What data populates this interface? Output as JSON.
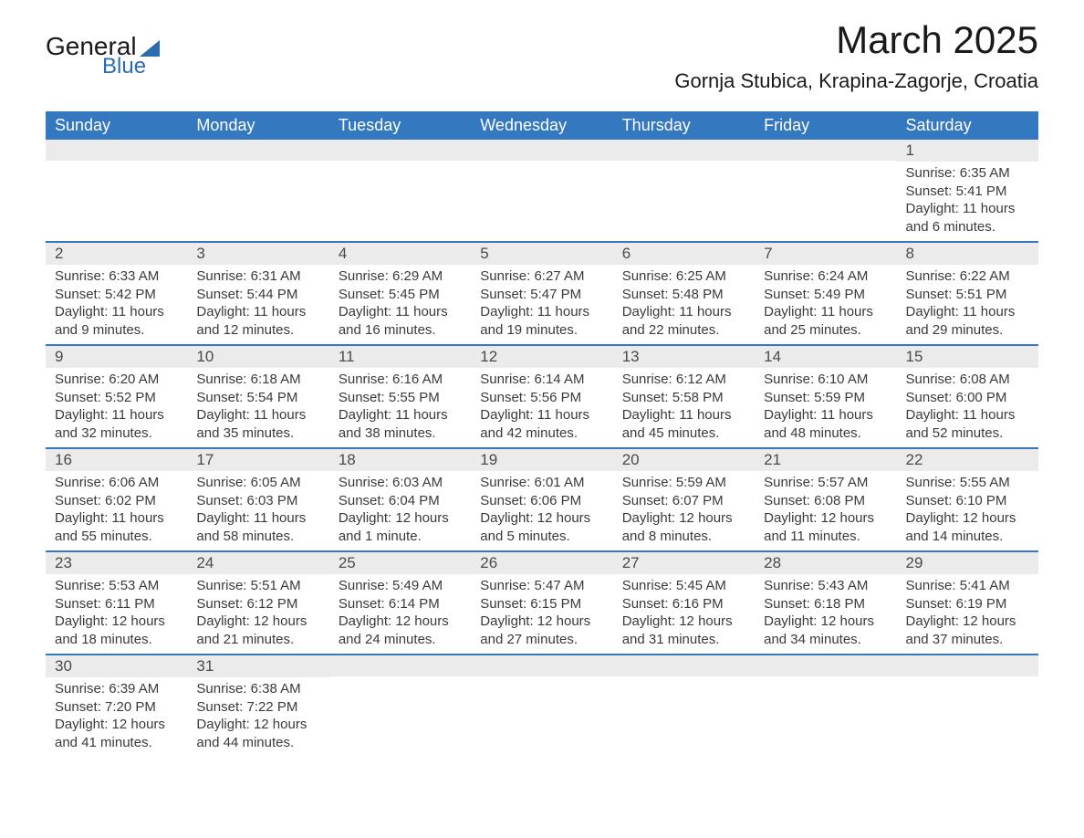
{
  "logo": {
    "general": "General",
    "blue": "Blue"
  },
  "header": {
    "title": "March 2025",
    "location": "Gornja Stubica, Krapina-Zagorje, Croatia"
  },
  "styling": {
    "header_bg": "#3478c0",
    "header_text": "#ffffff",
    "day_header_bg": "#ebebeb",
    "day_text": "#3a3a3a",
    "row_border": "#3478c0",
    "title_fontsize": 42,
    "location_fontsize": 22,
    "dayheader_fontsize": 18,
    "content_fontsize": 15
  },
  "day_names": [
    "Sunday",
    "Monday",
    "Tuesday",
    "Wednesday",
    "Thursday",
    "Friday",
    "Saturday"
  ],
  "weeks": [
    [
      null,
      null,
      null,
      null,
      null,
      null,
      {
        "day": "1",
        "sunrise": "Sunrise: 6:35 AM",
        "sunset": "Sunset: 5:41 PM",
        "daylight1": "Daylight: 11 hours",
        "daylight2": "and 6 minutes."
      }
    ],
    [
      {
        "day": "2",
        "sunrise": "Sunrise: 6:33 AM",
        "sunset": "Sunset: 5:42 PM",
        "daylight1": "Daylight: 11 hours",
        "daylight2": "and 9 minutes."
      },
      {
        "day": "3",
        "sunrise": "Sunrise: 6:31 AM",
        "sunset": "Sunset: 5:44 PM",
        "daylight1": "Daylight: 11 hours",
        "daylight2": "and 12 minutes."
      },
      {
        "day": "4",
        "sunrise": "Sunrise: 6:29 AM",
        "sunset": "Sunset: 5:45 PM",
        "daylight1": "Daylight: 11 hours",
        "daylight2": "and 16 minutes."
      },
      {
        "day": "5",
        "sunrise": "Sunrise: 6:27 AM",
        "sunset": "Sunset: 5:47 PM",
        "daylight1": "Daylight: 11 hours",
        "daylight2": "and 19 minutes."
      },
      {
        "day": "6",
        "sunrise": "Sunrise: 6:25 AM",
        "sunset": "Sunset: 5:48 PM",
        "daylight1": "Daylight: 11 hours",
        "daylight2": "and 22 minutes."
      },
      {
        "day": "7",
        "sunrise": "Sunrise: 6:24 AM",
        "sunset": "Sunset: 5:49 PM",
        "daylight1": "Daylight: 11 hours",
        "daylight2": "and 25 minutes."
      },
      {
        "day": "8",
        "sunrise": "Sunrise: 6:22 AM",
        "sunset": "Sunset: 5:51 PM",
        "daylight1": "Daylight: 11 hours",
        "daylight2": "and 29 minutes."
      }
    ],
    [
      {
        "day": "9",
        "sunrise": "Sunrise: 6:20 AM",
        "sunset": "Sunset: 5:52 PM",
        "daylight1": "Daylight: 11 hours",
        "daylight2": "and 32 minutes."
      },
      {
        "day": "10",
        "sunrise": "Sunrise: 6:18 AM",
        "sunset": "Sunset: 5:54 PM",
        "daylight1": "Daylight: 11 hours",
        "daylight2": "and 35 minutes."
      },
      {
        "day": "11",
        "sunrise": "Sunrise: 6:16 AM",
        "sunset": "Sunset: 5:55 PM",
        "daylight1": "Daylight: 11 hours",
        "daylight2": "and 38 minutes."
      },
      {
        "day": "12",
        "sunrise": "Sunrise: 6:14 AM",
        "sunset": "Sunset: 5:56 PM",
        "daylight1": "Daylight: 11 hours",
        "daylight2": "and 42 minutes."
      },
      {
        "day": "13",
        "sunrise": "Sunrise: 6:12 AM",
        "sunset": "Sunset: 5:58 PM",
        "daylight1": "Daylight: 11 hours",
        "daylight2": "and 45 minutes."
      },
      {
        "day": "14",
        "sunrise": "Sunrise: 6:10 AM",
        "sunset": "Sunset: 5:59 PM",
        "daylight1": "Daylight: 11 hours",
        "daylight2": "and 48 minutes."
      },
      {
        "day": "15",
        "sunrise": "Sunrise: 6:08 AM",
        "sunset": "Sunset: 6:00 PM",
        "daylight1": "Daylight: 11 hours",
        "daylight2": "and 52 minutes."
      }
    ],
    [
      {
        "day": "16",
        "sunrise": "Sunrise: 6:06 AM",
        "sunset": "Sunset: 6:02 PM",
        "daylight1": "Daylight: 11 hours",
        "daylight2": "and 55 minutes."
      },
      {
        "day": "17",
        "sunrise": "Sunrise: 6:05 AM",
        "sunset": "Sunset: 6:03 PM",
        "daylight1": "Daylight: 11 hours",
        "daylight2": "and 58 minutes."
      },
      {
        "day": "18",
        "sunrise": "Sunrise: 6:03 AM",
        "sunset": "Sunset: 6:04 PM",
        "daylight1": "Daylight: 12 hours",
        "daylight2": "and 1 minute."
      },
      {
        "day": "19",
        "sunrise": "Sunrise: 6:01 AM",
        "sunset": "Sunset: 6:06 PM",
        "daylight1": "Daylight: 12 hours",
        "daylight2": "and 5 minutes."
      },
      {
        "day": "20",
        "sunrise": "Sunrise: 5:59 AM",
        "sunset": "Sunset: 6:07 PM",
        "daylight1": "Daylight: 12 hours",
        "daylight2": "and 8 minutes."
      },
      {
        "day": "21",
        "sunrise": "Sunrise: 5:57 AM",
        "sunset": "Sunset: 6:08 PM",
        "daylight1": "Daylight: 12 hours",
        "daylight2": "and 11 minutes."
      },
      {
        "day": "22",
        "sunrise": "Sunrise: 5:55 AM",
        "sunset": "Sunset: 6:10 PM",
        "daylight1": "Daylight: 12 hours",
        "daylight2": "and 14 minutes."
      }
    ],
    [
      {
        "day": "23",
        "sunrise": "Sunrise: 5:53 AM",
        "sunset": "Sunset: 6:11 PM",
        "daylight1": "Daylight: 12 hours",
        "daylight2": "and 18 minutes."
      },
      {
        "day": "24",
        "sunrise": "Sunrise: 5:51 AM",
        "sunset": "Sunset: 6:12 PM",
        "daylight1": "Daylight: 12 hours",
        "daylight2": "and 21 minutes."
      },
      {
        "day": "25",
        "sunrise": "Sunrise: 5:49 AM",
        "sunset": "Sunset: 6:14 PM",
        "daylight1": "Daylight: 12 hours",
        "daylight2": "and 24 minutes."
      },
      {
        "day": "26",
        "sunrise": "Sunrise: 5:47 AM",
        "sunset": "Sunset: 6:15 PM",
        "daylight1": "Daylight: 12 hours",
        "daylight2": "and 27 minutes."
      },
      {
        "day": "27",
        "sunrise": "Sunrise: 5:45 AM",
        "sunset": "Sunset: 6:16 PM",
        "daylight1": "Daylight: 12 hours",
        "daylight2": "and 31 minutes."
      },
      {
        "day": "28",
        "sunrise": "Sunrise: 5:43 AM",
        "sunset": "Sunset: 6:18 PM",
        "daylight1": "Daylight: 12 hours",
        "daylight2": "and 34 minutes."
      },
      {
        "day": "29",
        "sunrise": "Sunrise: 5:41 AM",
        "sunset": "Sunset: 6:19 PM",
        "daylight1": "Daylight: 12 hours",
        "daylight2": "and 37 minutes."
      }
    ],
    [
      {
        "day": "30",
        "sunrise": "Sunrise: 6:39 AM",
        "sunset": "Sunset: 7:20 PM",
        "daylight1": "Daylight: 12 hours",
        "daylight2": "and 41 minutes."
      },
      {
        "day": "31",
        "sunrise": "Sunrise: 6:38 AM",
        "sunset": "Sunset: 7:22 PM",
        "daylight1": "Daylight: 12 hours",
        "daylight2": "and 44 minutes."
      },
      null,
      null,
      null,
      null,
      null
    ]
  ]
}
